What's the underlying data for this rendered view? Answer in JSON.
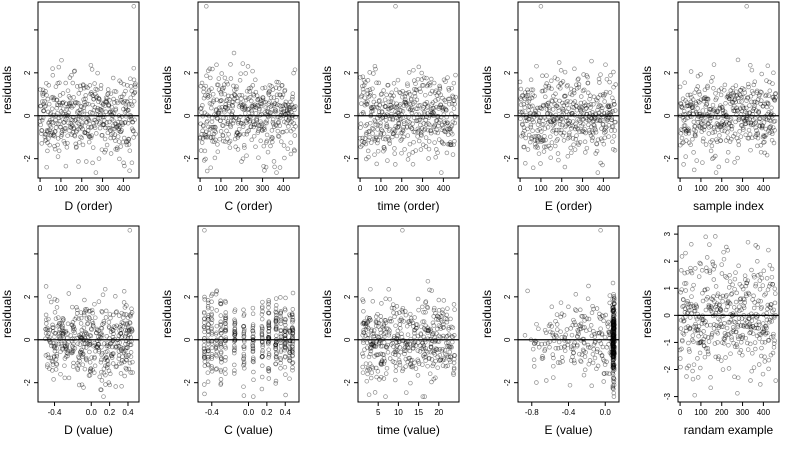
{
  "chart_data": [
    {
      "type": "scatter",
      "xlabel": "D (order)",
      "ylabel": "residuals",
      "x_kind": "index",
      "xlim": [
        -10,
        475
      ],
      "ylim": [
        -2.9,
        5.3
      ],
      "xticks": [
        0,
        100,
        200,
        300,
        400
      ],
      "xtick_labels": [
        "0",
        "100",
        "200",
        "300",
        "400"
      ],
      "yticks": [
        -2,
        0,
        2,
        4
      ],
      "ytick_labels": [
        "-2",
        "0",
        "2",
        ""
      ],
      "hline": 0,
      "seed": 11,
      "n": 460,
      "outlier": [
        450,
        5.1
      ]
    },
    {
      "type": "scatter",
      "xlabel": "C (order)",
      "ylabel": "residuals",
      "x_kind": "index",
      "xlim": [
        -10,
        475
      ],
      "ylim": [
        -2.9,
        5.3
      ],
      "xticks": [
        0,
        100,
        200,
        300,
        400
      ],
      "xtick_labels": [
        "0",
        "100",
        "200",
        "300",
        "400"
      ],
      "yticks": [
        -2,
        0,
        2,
        4
      ],
      "ytick_labels": [
        "-2",
        "0",
        "2",
        ""
      ],
      "hline": 0,
      "seed": 23,
      "n": 460,
      "outlier": [
        30,
        5.1
      ]
    },
    {
      "type": "scatter",
      "xlabel": "time (order)",
      "ylabel": "residuals",
      "x_kind": "index",
      "xlim": [
        -10,
        475
      ],
      "ylim": [
        -2.9,
        5.3
      ],
      "xticks": [
        0,
        100,
        200,
        300,
        400
      ],
      "xtick_labels": [
        "0",
        "100",
        "200",
        "300",
        "400"
      ],
      "yticks": [
        -2,
        0,
        2,
        4
      ],
      "ytick_labels": [
        "-2",
        "0",
        "2",
        ""
      ],
      "hline": 0,
      "seed": 37,
      "n": 460,
      "outlier": [
        170,
        5.1
      ]
    },
    {
      "type": "scatter",
      "xlabel": "E (order)",
      "ylabel": "residuals",
      "x_kind": "index",
      "xlim": [
        -10,
        475
      ],
      "ylim": [
        -2.9,
        5.3
      ],
      "xticks": [
        0,
        100,
        200,
        300,
        400
      ],
      "xtick_labels": [
        "0",
        "100",
        "200",
        "300",
        "400"
      ],
      "yticks": [
        -2,
        0,
        2,
        4
      ],
      "ytick_labels": [
        "-2",
        "0",
        "2",
        ""
      ],
      "hline": 0,
      "seed": 41,
      "n": 460,
      "outlier": [
        100,
        5.1
      ]
    },
    {
      "type": "scatter",
      "xlabel": "sample index",
      "ylabel": "residuals",
      "x_kind": "index",
      "xlim": [
        -10,
        475
      ],
      "ylim": [
        -2.9,
        5.3
      ],
      "xticks": [
        0,
        100,
        200,
        300,
        400
      ],
      "xtick_labels": [
        "0",
        "100",
        "200",
        "300",
        "400"
      ],
      "yticks": [
        -2,
        0,
        2,
        4
      ],
      "ytick_labels": [
        "-2",
        "0",
        "2",
        ""
      ],
      "hline": 0,
      "seed": 53,
      "n": 460,
      "outlier": [
        320,
        5.1
      ]
    },
    {
      "type": "scatter",
      "xlabel": "D (value)",
      "ylabel": "residuals",
      "x_kind": "uniform",
      "xlim": [
        -0.58,
        0.52
      ],
      "ylim": [
        -2.9,
        5.3
      ],
      "xrange": [
        -0.5,
        0.45
      ],
      "xticks": [
        -0.4,
        0,
        0.2,
        0.4
      ],
      "xtick_labels": [
        "-0.4",
        "0.0",
        "0.2",
        "0.4"
      ],
      "yticks": [
        -2,
        0,
        2,
        4
      ],
      "ytick_labels": [
        "-2",
        "0",
        "2",
        ""
      ],
      "hline": 0,
      "seed": 61,
      "n": 460,
      "outlier": [
        0.42,
        5.1
      ]
    },
    {
      "type": "scatter",
      "xlabel": "C (value)",
      "ylabel": "residuals",
      "x_kind": "columns",
      "xlim": [
        -0.55,
        0.55
      ],
      "ylim": [
        -2.9,
        5.3
      ],
      "columns": [
        -0.48,
        -0.44,
        -0.4,
        -0.35,
        -0.3,
        -0.25,
        -0.15,
        -0.05,
        0.05,
        0.15,
        0.22,
        0.3,
        0.35,
        0.4,
        0.45,
        0.48
      ],
      "xticks": [
        -0.4,
        0,
        0.2,
        0.4
      ],
      "xtick_labels": [
        "-0.4",
        "0.0",
        "0.2",
        "0.4"
      ],
      "yticks": [
        -2,
        0,
        2,
        4
      ],
      "ytick_labels": [
        "-2",
        "0",
        "2",
        ""
      ],
      "hline": 0,
      "seed": 71,
      "n": 460,
      "outlier": [
        -0.48,
        5.1
      ]
    },
    {
      "type": "scatter",
      "xlabel": "time (value)",
      "ylabel": "residuals",
      "x_kind": "uniform",
      "xlim": [
        0,
        25
      ],
      "ylim": [
        -2.9,
        5.3
      ],
      "xrange": [
        1,
        24
      ],
      "xticks": [
        5,
        10,
        15,
        20
      ],
      "xtick_labels": [
        "5",
        "10",
        "15",
        "20"
      ],
      "yticks": [
        -2,
        0,
        2,
        4
      ],
      "ytick_labels": [
        "-2",
        "0",
        "2",
        ""
      ],
      "hline": 0,
      "seed": 83,
      "n": 460,
      "outlier": [
        11,
        5.1
      ]
    },
    {
      "type": "scatter",
      "xlabel": "E (value)",
      "ylabel": "residuals",
      "x_kind": "skewed",
      "xlim": [
        -0.95,
        0.15
      ],
      "ylim": [
        -2.9,
        5.3
      ],
      "xrange": [
        -0.9,
        0.1
      ],
      "xticks": [
        -0.8,
        -0.4,
        0
      ],
      "xtick_labels": [
        "-0.8",
        "-0.4",
        "0.0"
      ],
      "yticks": [
        -2,
        0,
        2,
        4
      ],
      "ytick_labels": [
        "-2",
        "0",
        "2",
        ""
      ],
      "hline": 0,
      "seed": 97,
      "n": 460,
      "outlier": [
        -0.05,
        5.1
      ]
    },
    {
      "type": "scatter",
      "xlabel": "randam example",
      "ylabel": "residuals",
      "x_kind": "index",
      "xlim": [
        -10,
        475
      ],
      "ylim": [
        -3.2,
        3.3
      ],
      "xticks": [
        0,
        100,
        200,
        300,
        400
      ],
      "xtick_labels": [
        "0",
        "100",
        "200",
        "300",
        "400"
      ],
      "yticks": [
        -3,
        -2,
        -1,
        0,
        1,
        2,
        3
      ],
      "ytick_labels": [
        "-3",
        "-2",
        "-1",
        "0",
        "1",
        "2",
        "3"
      ],
      "hline": 0,
      "seed": 103,
      "n": 460,
      "noise": "normal"
    }
  ]
}
